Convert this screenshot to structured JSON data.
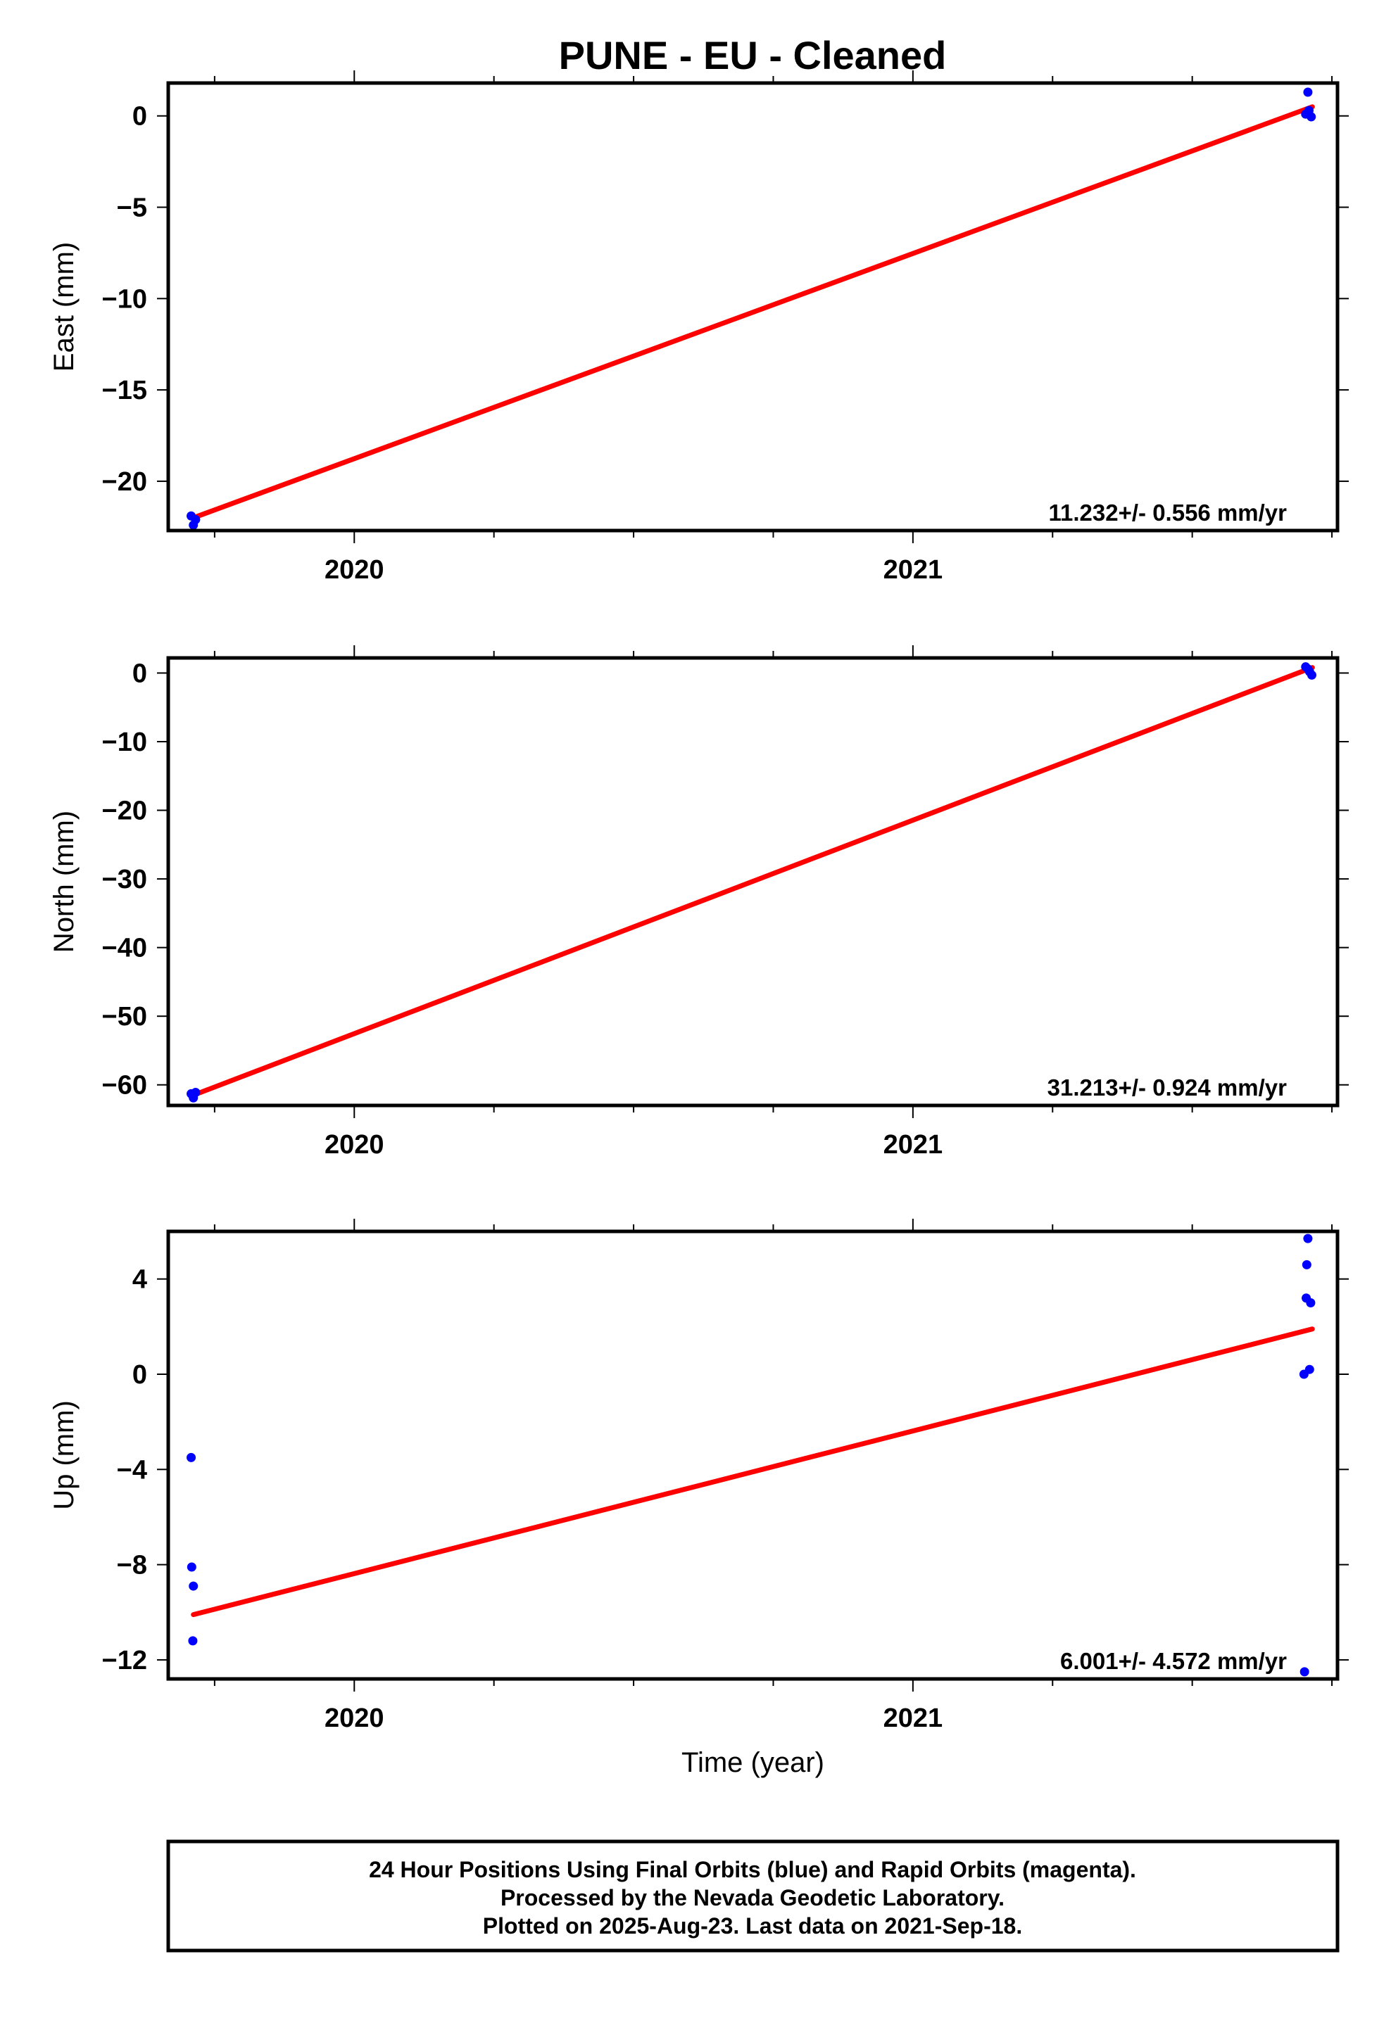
{
  "title": "PUNE  - EU - Cleaned",
  "chart_data": [
    {
      "type": "scatter",
      "ylabel": "East (mm)",
      "xlabel": "",
      "xlim": [
        2019.667,
        2021.76
      ],
      "ylim": [
        -22.7,
        1.8
      ],
      "yticks": [
        0,
        -5,
        -10,
        -15,
        -20
      ],
      "ytick_labels": [
        "0",
        "−5",
        "−10",
        "−15",
        "−20"
      ],
      "xticks": [
        2020,
        2021
      ],
      "xtick_labels": [
        "2020",
        "2021"
      ],
      "x_minor_ticks": [
        2019.75,
        2020.25,
        2020.5,
        2020.75,
        2021.25,
        2021.5,
        2021.75
      ],
      "points": [
        {
          "x": 2019.708,
          "y": -21.9
        },
        {
          "x": 2019.712,
          "y": -22.4
        },
        {
          "x": 2019.716,
          "y": -22.1
        },
        {
          "x": 2021.703,
          "y": 0.1
        },
        {
          "x": 2021.707,
          "y": 1.3
        },
        {
          "x": 2021.709,
          "y": 0.3
        },
        {
          "x": 2021.713,
          "y": -0.05
        }
      ],
      "trend": {
        "x": [
          2019.712,
          2021.715
        ],
        "y": [
          -22.0,
          0.5
        ]
      },
      "rate_text": "11.232+/- 0.556 mm/yr"
    },
    {
      "type": "scatter",
      "ylabel": "North (mm)",
      "xlabel": "",
      "xlim": [
        2019.667,
        2021.76
      ],
      "ylim": [
        -63.0,
        2.2
      ],
      "yticks": [
        0,
        -10,
        -20,
        -30,
        -40,
        -50,
        -60
      ],
      "ytick_labels": [
        "0",
        "−10",
        "−20",
        "−30",
        "−40",
        "−50",
        "−60"
      ],
      "xticks": [
        2020,
        2021
      ],
      "xtick_labels": [
        "2020",
        "2021"
      ],
      "x_minor_ticks": [
        2019.75,
        2020.25,
        2020.5,
        2020.75,
        2021.25,
        2021.5,
        2021.75
      ],
      "points": [
        {
          "x": 2019.708,
          "y": -61.3
        },
        {
          "x": 2019.712,
          "y": -61.9
        },
        {
          "x": 2019.716,
          "y": -61.1
        },
        {
          "x": 2021.703,
          "y": 0.9
        },
        {
          "x": 2021.707,
          "y": 0.6
        },
        {
          "x": 2021.71,
          "y": 0.2
        },
        {
          "x": 2021.714,
          "y": -0.3
        }
      ],
      "trend": {
        "x": [
          2019.712,
          2021.715
        ],
        "y": [
          -61.5,
          0.8
        ]
      },
      "rate_text": "31.213+/- 0.924 mm/yr"
    },
    {
      "type": "scatter",
      "ylabel": "Up (mm)",
      "xlabel": "Time (year)",
      "xlim": [
        2019.667,
        2021.76
      ],
      "ylim": [
        -12.8,
        6.0
      ],
      "yticks": [
        4,
        0,
        -4,
        -8,
        -12
      ],
      "ytick_labels": [
        "4",
        "0",
        "−4",
        "−8",
        "−12"
      ],
      "xticks": [
        2020,
        2021
      ],
      "xtick_labels": [
        "2020",
        "2021"
      ],
      "x_minor_ticks": [
        2019.75,
        2020.25,
        2020.5,
        2020.75,
        2021.25,
        2021.5,
        2021.75
      ],
      "points": [
        {
          "x": 2019.708,
          "y": -3.5
        },
        {
          "x": 2019.709,
          "y": -8.1
        },
        {
          "x": 2019.712,
          "y": -8.9
        },
        {
          "x": 2019.711,
          "y": -11.2
        },
        {
          "x": 2021.7,
          "y": 0.0
        },
        {
          "x": 2021.701,
          "y": -12.5
        },
        {
          "x": 2021.704,
          "y": 3.2
        },
        {
          "x": 2021.705,
          "y": 4.6
        },
        {
          "x": 2021.707,
          "y": 5.7
        },
        {
          "x": 2021.71,
          "y": 0.2
        },
        {
          "x": 2021.712,
          "y": 3.0
        }
      ],
      "trend": {
        "x": [
          2019.712,
          2021.715
        ],
        "y": [
          -10.1,
          1.9
        ]
      },
      "rate_text": "6.001+/- 4.572 mm/yr"
    }
  ],
  "colors": {
    "points": "#0000ff",
    "trend": "#ff0000",
    "frame": "#000000"
  },
  "footer": {
    "line1": "24 Hour Positions Using Final Orbits (blue) and Rapid Orbits (magenta).",
    "line2": "Processed by the Nevada Geodetic Laboratory.",
    "line3": "Plotted on 2025-Aug-23. Last data on 2021-Sep-18."
  }
}
